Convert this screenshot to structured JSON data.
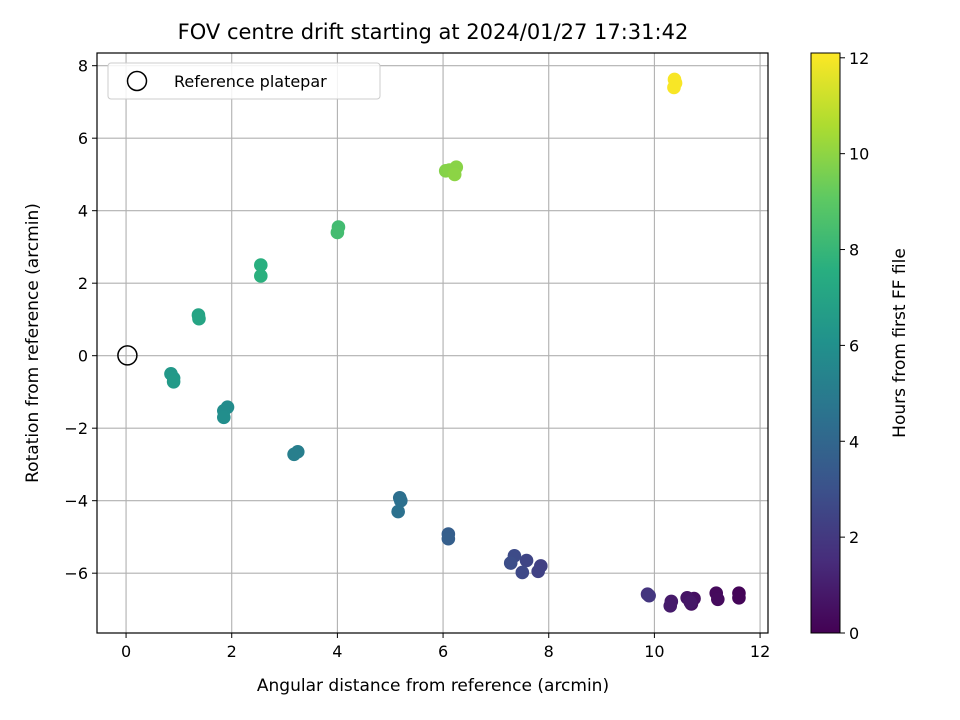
{
  "chart_data": {
    "type": "scatter",
    "title": "FOV centre drift starting at 2024/01/27 17:31:42",
    "xlabel": "Angular distance from reference (arcmin)",
    "ylabel": "Rotation from reference (arcmin)",
    "xlim": [
      -0.55,
      12.15
    ],
    "ylim": [
      -7.65,
      8.35
    ],
    "xticks": [
      0,
      2,
      4,
      6,
      8,
      10,
      12
    ],
    "yticks": [
      -6,
      -4,
      -2,
      0,
      2,
      4,
      6,
      8
    ],
    "grid": true,
    "legend": {
      "position": "top-left",
      "entries": [
        {
          "label": "Reference platepar",
          "marker": "open-circle"
        }
      ]
    },
    "reference_point": {
      "x": 0,
      "y": 0
    },
    "colorbar": {
      "label": "Hours from first FF file",
      "colormap": "viridis",
      "range": [
        0,
        12.1
      ],
      "ticks": [
        0,
        2,
        4,
        6,
        8,
        10,
        12
      ]
    },
    "points": [
      {
        "x": 11.6,
        "y": -6.55,
        "c": 0.1
      },
      {
        "x": 11.6,
        "y": -6.68,
        "c": 0.15
      },
      {
        "x": 11.17,
        "y": -6.55,
        "c": 0.3
      },
      {
        "x": 11.2,
        "y": -6.72,
        "c": 0.35
      },
      {
        "x": 10.75,
        "y": -6.7,
        "c": 0.5
      },
      {
        "x": 10.7,
        "y": -6.85,
        "c": 0.55
      },
      {
        "x": 10.62,
        "y": -6.68,
        "c": 0.65
      },
      {
        "x": 10.68,
        "y": -6.8,
        "c": 0.75
      },
      {
        "x": 10.32,
        "y": -6.78,
        "c": 0.85
      },
      {
        "x": 10.3,
        "y": -6.9,
        "c": 0.9
      },
      {
        "x": 9.87,
        "y": -6.58,
        "c": 1.8
      },
      {
        "x": 9.9,
        "y": -6.62,
        "c": 1.9
      },
      {
        "x": 7.85,
        "y": -5.8,
        "c": 2.3
      },
      {
        "x": 7.8,
        "y": -5.95,
        "c": 2.35
      },
      {
        "x": 7.58,
        "y": -5.65,
        "c": 2.5
      },
      {
        "x": 7.5,
        "y": -5.98,
        "c": 2.6
      },
      {
        "x": 7.35,
        "y": -5.52,
        "c": 2.75
      },
      {
        "x": 7.28,
        "y": -5.72,
        "c": 2.85
      },
      {
        "x": 6.1,
        "y": -4.92,
        "c": 3.6
      },
      {
        "x": 6.1,
        "y": -5.05,
        "c": 3.65
      },
      {
        "x": 5.18,
        "y": -3.92,
        "c": 4.4
      },
      {
        "x": 5.2,
        "y": -4.0,
        "c": 4.45
      },
      {
        "x": 5.15,
        "y": -4.3,
        "c": 4.5
      },
      {
        "x": 3.25,
        "y": -2.65,
        "c": 5.1
      },
      {
        "x": 3.18,
        "y": -2.72,
        "c": 5.15
      },
      {
        "x": 1.92,
        "y": -1.42,
        "c": 5.8
      },
      {
        "x": 1.85,
        "y": -1.52,
        "c": 5.85
      },
      {
        "x": 1.85,
        "y": -1.7,
        "c": 5.9
      },
      {
        "x": 0.85,
        "y": -0.5,
        "c": 6.4
      },
      {
        "x": 0.9,
        "y": -0.62,
        "c": 6.45
      },
      {
        "x": 0.9,
        "y": -0.72,
        "c": 6.5
      },
      {
        "x": 1.37,
        "y": 1.12,
        "c": 7.0
      },
      {
        "x": 1.38,
        "y": 1.02,
        "c": 7.05
      },
      {
        "x": 2.55,
        "y": 2.5,
        "c": 7.6
      },
      {
        "x": 2.55,
        "y": 2.2,
        "c": 7.65
      },
      {
        "x": 4.02,
        "y": 3.55,
        "c": 8.3
      },
      {
        "x": 4.0,
        "y": 3.4,
        "c": 8.35
      },
      {
        "x": 6.05,
        "y": 5.1,
        "c": 9.8
      },
      {
        "x": 6.12,
        "y": 5.12,
        "c": 9.85
      },
      {
        "x": 6.25,
        "y": 5.2,
        "c": 9.9
      },
      {
        "x": 6.22,
        "y": 5.0,
        "c": 9.95
      },
      {
        "x": 10.38,
        "y": 7.62,
        "c": 12.0
      },
      {
        "x": 10.4,
        "y": 7.52,
        "c": 12.0
      },
      {
        "x": 10.37,
        "y": 7.4,
        "c": 12.0
      }
    ]
  }
}
